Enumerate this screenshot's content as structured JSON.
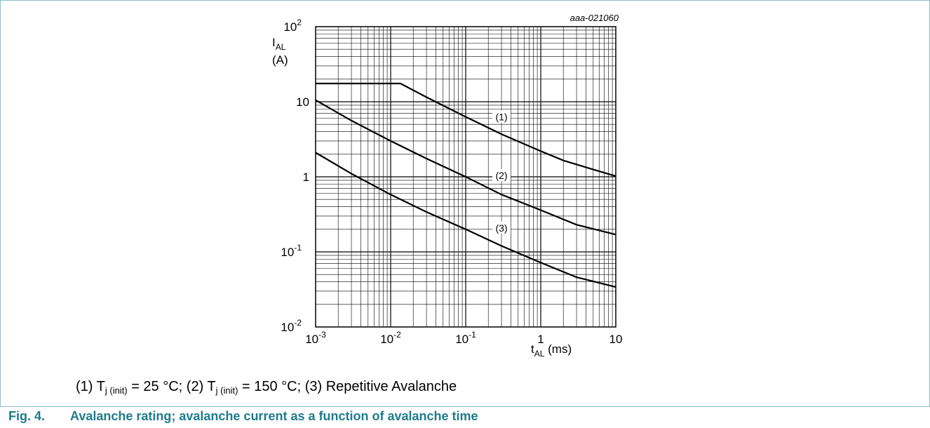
{
  "chart_data": {
    "type": "line",
    "scale": {
      "x": "log",
      "y": "log"
    },
    "xlim": [
      0.001,
      10
    ],
    "ylim": [
      0.01,
      100
    ],
    "grid": true,
    "y_axis": {
      "symbol": "I",
      "sub": "AL",
      "unit": "(A)"
    },
    "x_axis": {
      "symbol": "t",
      "sub": "AL",
      "unit": " (ms)"
    },
    "x_ticks": [
      {
        "base": "10",
        "exp": "-3"
      },
      {
        "base": "10",
        "exp": "-2"
      },
      {
        "base": "10",
        "exp": "-1"
      },
      {
        "base": "1",
        "exp": ""
      },
      {
        "base": "10",
        "exp": ""
      }
    ],
    "y_ticks": [
      {
        "base": "10",
        "exp": "-2"
      },
      {
        "base": "10",
        "exp": "-1"
      },
      {
        "base": "1",
        "exp": ""
      },
      {
        "base": "10",
        "exp": ""
      },
      {
        "base": "10",
        "exp": "2"
      }
    ],
    "figure_id": "aaa-021060",
    "series": [
      {
        "name": "(1)",
        "label_at": [
          0.3,
          6.0
        ],
        "x": [
          0.001,
          0.0135,
          0.03,
          0.1,
          0.3,
          1,
          2,
          5,
          10
        ],
        "y": [
          17.5,
          17.5,
          11.5,
          6.3,
          3.7,
          2.2,
          1.65,
          1.25,
          1.02
        ]
      },
      {
        "name": "(2)",
        "label_at": [
          0.3,
          1.0
        ],
        "x": [
          0.001,
          0.003,
          0.01,
          0.03,
          0.1,
          0.3,
          1,
          3,
          10
        ],
        "y": [
          10.5,
          5.6,
          3.0,
          1.75,
          1.0,
          0.58,
          0.36,
          0.23,
          0.17
        ]
      },
      {
        "name": "(3)",
        "label_at": [
          0.3,
          0.2
        ],
        "x": [
          0.001,
          0.003,
          0.01,
          0.03,
          0.1,
          0.3,
          1,
          3,
          10
        ],
        "y": [
          2.1,
          1.1,
          0.58,
          0.34,
          0.2,
          0.12,
          0.072,
          0.046,
          0.034
        ]
      }
    ]
  },
  "note": {
    "p1": "(1) T",
    "s1": "j (init)",
    "p2": " = 25 °C; (2) T",
    "s2": "j (init)",
    "p3": " = 150 °C; (3) Repetitive Avalanche"
  },
  "caption": {
    "number": "Fig. 4.",
    "text": "Avalanche rating; avalanche current as a function of avalanche time"
  }
}
